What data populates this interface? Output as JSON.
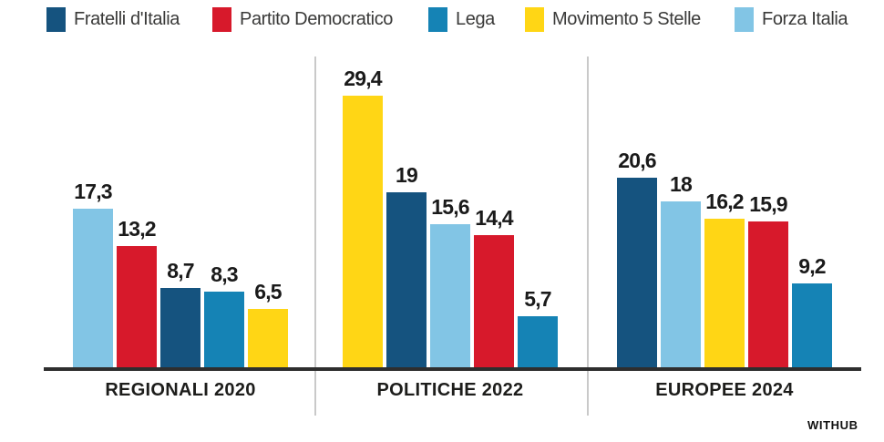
{
  "page": {
    "background": "#ffffff",
    "credit": "WITHUB"
  },
  "legend": {
    "position": "top",
    "items": [
      {
        "label": "Fratelli d'Italia",
        "color": "#15537f"
      },
      {
        "label": "Partito Democratico",
        "color": "#d7192b"
      },
      {
        "label": "Lega",
        "color": "#1583b5"
      },
      {
        "label": "Movimento 5 Stelle",
        "color": "#ffd615"
      },
      {
        "label": "Forza Italia",
        "color": "#82c5e5"
      }
    ]
  },
  "chart_data": {
    "type": "bar",
    "title": "",
    "unit": "percent",
    "decimal_separator": ",",
    "grid": false,
    "legend_position": "top",
    "ylim": [
      0,
      30
    ],
    "parties": [
      {
        "name": "Fratelli d'Italia",
        "color": "#15537f"
      },
      {
        "name": "Partito Democratico",
        "color": "#d7192b"
      },
      {
        "name": "Lega",
        "color": "#1583b5"
      },
      {
        "name": "Movimento 5 Stelle",
        "color": "#ffd615"
      },
      {
        "name": "Forza Italia",
        "color": "#82c5e5"
      }
    ],
    "groups": [
      {
        "label": "REGIONALI 2020",
        "bars": [
          {
            "party": "Forza Italia",
            "value": 17.3,
            "label": "17,3"
          },
          {
            "party": "Partito Democratico",
            "value": 13.2,
            "label": "13,2"
          },
          {
            "party": "Fratelli d'Italia",
            "value": 8.7,
            "label": "8,7"
          },
          {
            "party": "Lega",
            "value": 8.3,
            "label": "8,3"
          },
          {
            "party": "Movimento 5 Stelle",
            "value": 6.5,
            "label": "6,5"
          }
        ]
      },
      {
        "label": "POLITICHE 2022",
        "bars": [
          {
            "party": "Movimento 5 Stelle",
            "value": 29.4,
            "label": "29,4"
          },
          {
            "party": "Fratelli d'Italia",
            "value": 19,
            "label": "19"
          },
          {
            "party": "Forza Italia",
            "value": 15.6,
            "label": "15,6"
          },
          {
            "party": "Partito Democratico",
            "value": 14.4,
            "label": "14,4"
          },
          {
            "party": "Lega",
            "value": 5.7,
            "label": "5,7"
          }
        ]
      },
      {
        "label": "EUROPEE 2024",
        "bars": [
          {
            "party": "Fratelli d'Italia",
            "value": 20.6,
            "label": "20,6"
          },
          {
            "party": "Forza Italia",
            "value": 18,
            "label": "18"
          },
          {
            "party": "Movimento 5 Stelle",
            "value": 16.2,
            "label": "16,2"
          },
          {
            "party": "Partito Democratico",
            "value": 15.9,
            "label": "15,9"
          },
          {
            "party": "Lega",
            "value": 9.2,
            "label": "9,2"
          }
        ]
      }
    ]
  }
}
